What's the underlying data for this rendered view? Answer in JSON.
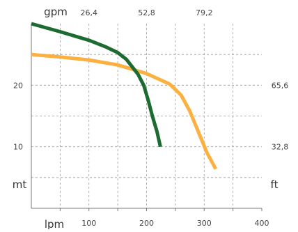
{
  "chart_data": {
    "type": "line",
    "title": "",
    "x": {
      "unit": "lpm",
      "range": [
        0,
        400
      ],
      "ticks": [
        100,
        200,
        300,
        400
      ],
      "tick_labels": [
        "100",
        "200",
        "300",
        "400"
      ],
      "grid_step": 50
    },
    "x_top": {
      "unit": "gpm",
      "tick_values_lpm": [
        100,
        200,
        300
      ],
      "tick_labels": [
        "26,4",
        "52,8",
        "79,2"
      ]
    },
    "y": {
      "unit": "mt",
      "range": [
        0,
        30
      ],
      "ticks": [
        10,
        20
      ],
      "tick_labels": [
        "10",
        "20"
      ],
      "grid_step": 5
    },
    "y_right": {
      "unit": "ft",
      "tick_values_mt": [
        10,
        20
      ],
      "tick_labels": [
        "32,8",
        "65,6"
      ]
    },
    "grid": true,
    "series": [
      {
        "color": "#1e6b32",
        "points": [
          [
            0,
            30.0
          ],
          [
            50,
            28.7
          ],
          [
            100,
            27.3
          ],
          [
            130,
            26.2
          ],
          [
            150,
            25.3
          ],
          [
            165,
            24.2
          ],
          [
            175,
            23.0
          ],
          [
            185,
            21.8
          ],
          [
            195,
            20.0
          ],
          [
            203,
            17.5
          ],
          [
            210,
            15.0
          ],
          [
            218,
            12.5
          ],
          [
            224,
            10.0
          ]
        ]
      },
      {
        "color": "#fbb040",
        "points": [
          [
            0,
            25.0
          ],
          [
            50,
            24.6
          ],
          [
            100,
            24.1
          ],
          [
            150,
            23.3
          ],
          [
            200,
            21.9
          ],
          [
            240,
            20.2
          ],
          [
            260,
            18.4
          ],
          [
            275,
            15.8
          ],
          [
            290,
            12.4
          ],
          [
            305,
            9.0
          ],
          [
            320,
            6.4
          ]
        ]
      }
    ]
  }
}
